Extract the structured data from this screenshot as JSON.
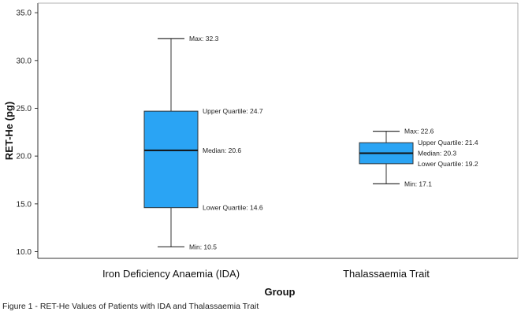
{
  "chart_data": {
    "type": "boxplot",
    "xlabel": "Group",
    "ylabel": "RET-He (pg)",
    "ylim": [
      9.3,
      36
    ],
    "yticks": [
      10.0,
      15.0,
      20.0,
      25.0,
      30.0,
      35.0
    ],
    "yticklabels": [
      "10.0",
      "15.0",
      "20.0",
      "25.0",
      "30.0",
      "35.0"
    ],
    "grid": false,
    "box_color": "#2aa4f4",
    "categories": [
      "Iron Deficiency Anaemia (IDA)",
      "Thalassaemia Trait"
    ],
    "boxes": [
      {
        "group": "Iron Deficiency Anaemia (IDA)",
        "min": 10.5,
        "q1": 14.6,
        "median": 20.6,
        "q3": 24.7,
        "max": 32.3,
        "labels": {
          "max": "Max: 32.3",
          "q3": "Upper Quartile: 24.7",
          "median": "Median: 20.6",
          "q1": "Lower Quartile: 14.6",
          "min": "Min: 10.5"
        }
      },
      {
        "group": "Thalassaemia Trait",
        "min": 17.1,
        "q1": 19.2,
        "median": 20.3,
        "q3": 21.4,
        "max": 22.6,
        "labels": {
          "max": "Max: 22.6",
          "q3": "Upper Quartile: 21.4",
          "median": "Median: 20.3",
          "q1": "Lower Quartile: 19.2",
          "min": "Min: 17.1"
        }
      }
    ]
  },
  "caption": "Figure 1 - RET-He Values of Patients with IDA and Thalassaemia Trait"
}
